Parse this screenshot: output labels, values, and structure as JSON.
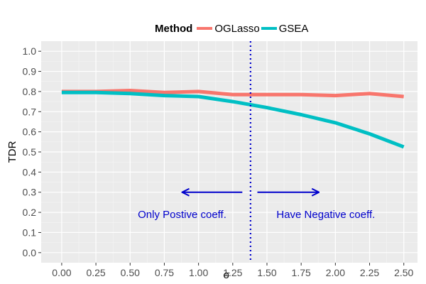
{
  "chart_data": {
    "type": "line",
    "title": "",
    "xlabel": "σ",
    "ylabel": "TDR",
    "xlim": [
      -0.15,
      2.6
    ],
    "ylim": [
      -0.05,
      1.05
    ],
    "x_ticks": [
      0.0,
      0.25,
      0.5,
      0.75,
      1.0,
      1.25,
      1.5,
      1.75,
      2.0,
      2.25,
      2.5
    ],
    "x_tick_labels": [
      "0.00",
      "0.25",
      "0.50",
      "0.75",
      "1.00",
      "1.25",
      "1.50",
      "1.75",
      "2.00",
      "2.25",
      "2.50"
    ],
    "y_ticks": [
      0.0,
      0.1,
      0.2,
      0.3,
      0.4,
      0.5,
      0.6,
      0.7,
      0.8,
      0.9,
      1.0
    ],
    "y_tick_labels": [
      "0.0",
      "0.1",
      "0.2",
      "0.3",
      "0.4",
      "0.5",
      "0.6",
      "0.7",
      "0.8",
      "0.9",
      "1.0"
    ],
    "grid": true,
    "legend": {
      "title": "Method",
      "position": "top",
      "entries": [
        {
          "name": "OGLasso",
          "color": "#F8766D"
        },
        {
          "name": "GSEA",
          "color": "#00BFC4"
        }
      ]
    },
    "series": [
      {
        "name": "OGLasso",
        "color": "#F8766D",
        "x": [
          0.0,
          0.25,
          0.5,
          0.75,
          1.0,
          1.25,
          1.5,
          1.75,
          2.0,
          2.25,
          2.5
        ],
        "values": [
          0.8,
          0.8,
          0.805,
          0.795,
          0.8,
          0.785,
          0.785,
          0.785,
          0.78,
          0.79,
          0.775
        ]
      },
      {
        "name": "GSEA",
        "color": "#00BFC4",
        "x": [
          0.0,
          0.25,
          0.5,
          0.75,
          1.0,
          1.25,
          1.5,
          1.75,
          2.0,
          2.25,
          2.5
        ],
        "values": [
          0.795,
          0.795,
          0.79,
          0.78,
          0.775,
          0.75,
          0.72,
          0.685,
          0.645,
          0.59,
          0.525
        ]
      }
    ],
    "vline": {
      "x": 1.38,
      "color": "#0000cc",
      "style": "dotted"
    },
    "arrows": [
      {
        "direction": "left",
        "from_x": 1.32,
        "to_x": 0.88,
        "y": 0.3,
        "color": "#0000cc"
      },
      {
        "direction": "right",
        "from_x": 1.43,
        "to_x": 1.88,
        "y": 0.3,
        "color": "#0000cc"
      }
    ],
    "annotations": [
      {
        "text": "Only Postive coeff.",
        "x": 0.88,
        "y": 0.19,
        "color": "#0000cc"
      },
      {
        "text": "Have Negative coeff.",
        "x": 1.93,
        "y": 0.19,
        "color": "#0000cc"
      }
    ]
  }
}
